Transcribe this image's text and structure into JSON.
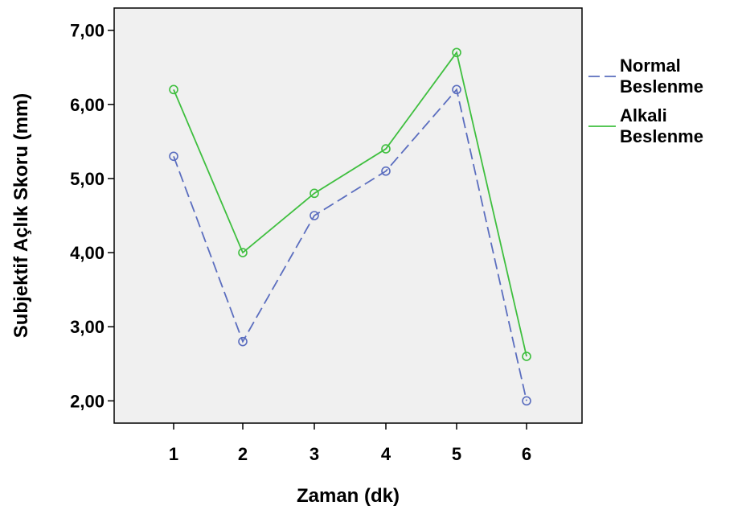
{
  "chart_data": {
    "type": "line",
    "x": [
      1,
      2,
      3,
      4,
      5,
      6
    ],
    "xlabel": "Zaman (dk)",
    "ylabel": "Subjektif Açlık Skoru (mm)",
    "ylim": [
      1.7,
      7.3
    ],
    "yticks": [
      "2,00",
      "3,00",
      "4,00",
      "5,00",
      "6,00",
      "7,00"
    ],
    "ytick_values": [
      2,
      3,
      4,
      5,
      6,
      7
    ],
    "xticks": [
      "1",
      "2",
      "3",
      "4",
      "5",
      "6"
    ],
    "grid": false,
    "legend_position": "right",
    "series": [
      {
        "name_lines": [
          "Normal",
          "Beslenme"
        ],
        "values": [
          5.3,
          2.8,
          4.5,
          5.1,
          6.2,
          2.0
        ],
        "color": "#5b6ebf",
        "dash": "dashed"
      },
      {
        "name_lines": [
          "Alkali",
          "Beslenme"
        ],
        "values": [
          6.2,
          4.0,
          4.8,
          5.4,
          6.7,
          2.6
        ],
        "color": "#3fbf3f",
        "dash": "solid"
      }
    ],
    "plot_background": "#f0f0f0"
  }
}
